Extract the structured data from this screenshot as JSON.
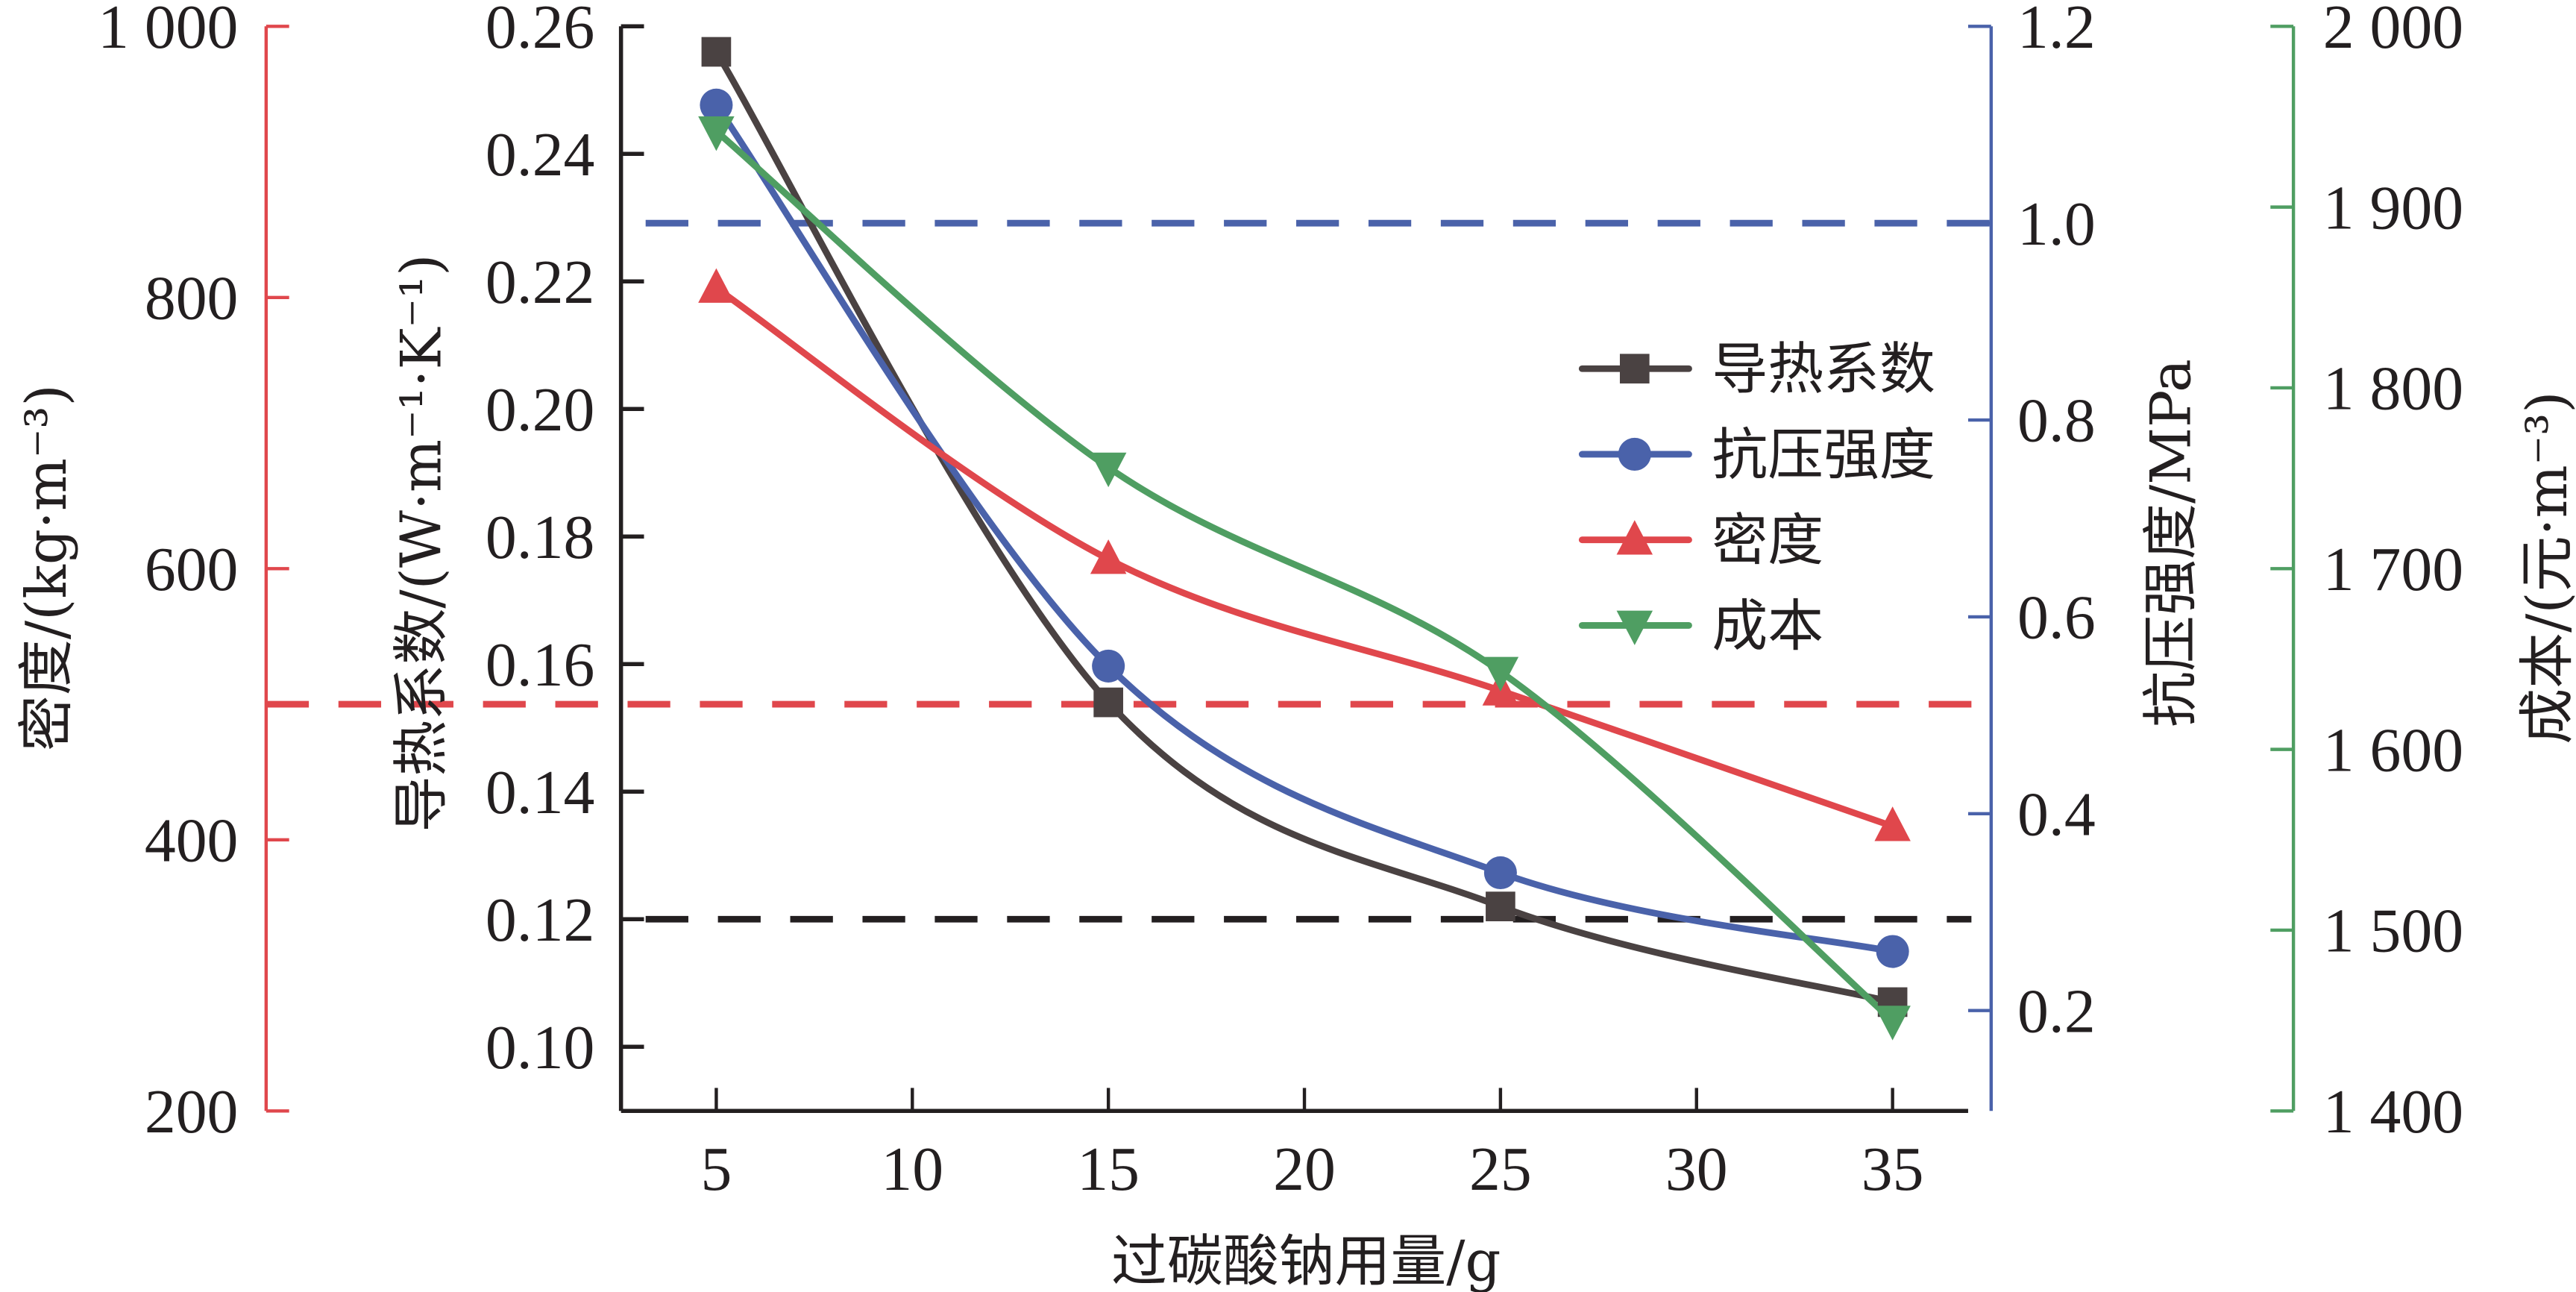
{
  "chart_data": {
    "type": "line",
    "title": "",
    "xlabel": "过碳酸钠用量/g",
    "x": [
      5,
      15,
      25,
      35
    ],
    "xlim": [
      2.5,
      37.5
    ],
    "xticks": [
      5,
      10,
      15,
      20,
      25,
      30,
      35
    ],
    "grid": false,
    "legend_position": "center-right",
    "axes": [
      {
        "id": "density",
        "side": "far-left",
        "label": "密度/(kg·m⁻³)",
        "color": "#e0474c",
        "ylim": [
          200,
          1000
        ],
        "ticks": [
          200,
          400,
          600,
          800,
          1000
        ],
        "tick_labels": [
          "200",
          "400",
          "600",
          "800",
          "1 000"
        ]
      },
      {
        "id": "thermal",
        "side": "left",
        "label": "导热系数/(W·m⁻¹·K⁻¹)",
        "color": "#231f20",
        "ylim": [
          0.09,
          0.26
        ],
        "ticks": [
          0.1,
          0.12,
          0.14,
          0.16,
          0.18,
          0.2,
          0.22,
          0.24,
          0.26
        ],
        "tick_labels": [
          "0.10",
          "0.12",
          "0.14",
          "0.16",
          "0.18",
          "0.20",
          "0.22",
          "0.24",
          "0.26"
        ]
      },
      {
        "id": "strength",
        "side": "right",
        "label": "抗压强度/MPa",
        "color": "#4a62aa",
        "ylim": [
          0.1,
          1.2
        ],
        "ticks": [
          0.2,
          0.4,
          0.6,
          0.8,
          1.0,
          1.2
        ],
        "tick_labels": [
          "0.2",
          "0.4",
          "0.6",
          "0.8",
          "1.0",
          "1.2"
        ]
      },
      {
        "id": "cost",
        "side": "far-right",
        "label": "成本/(元·m⁻³)",
        "color": "#4f9e62",
        "ylim": [
          1400,
          2000
        ],
        "ticks": [
          1400,
          1500,
          1600,
          1700,
          1800,
          1900,
          2000
        ],
        "tick_labels": [
          "1 400",
          "1 500",
          "1 600",
          "1 700",
          "1 800",
          "1 900",
          "2 000"
        ]
      }
    ],
    "series": [
      {
        "name": "导热系数",
        "axis": "thermal",
        "color": "#4a4242",
        "marker": "square",
        "values": [
          0.256,
          0.154,
          0.122,
          0.107
        ]
      },
      {
        "name": "抗压强度",
        "axis": "strength",
        "color": "#4a62aa",
        "marker": "circle",
        "values": [
          1.12,
          0.55,
          0.34,
          0.26
        ]
      },
      {
        "name": "密度",
        "axis": "density",
        "color": "#e0474c",
        "marker": "triangle-up",
        "values": [
          807,
          607,
          510,
          410
        ]
      },
      {
        "name": "成本",
        "axis": "cost",
        "color": "#4f9e62",
        "marker": "triangle-down",
        "values": [
          1942,
          1756,
          1643,
          1450
        ]
      }
    ],
    "reference_lines": [
      {
        "axis": "strength",
        "value": 1.0,
        "color": "#4a62aa",
        "style": "dashed"
      },
      {
        "axis": "density",
        "value": 500,
        "color": "#e0474c",
        "style": "dashed"
      },
      {
        "axis": "thermal",
        "value": 0.12,
        "color": "#231f20",
        "style": "dashed"
      }
    ]
  }
}
